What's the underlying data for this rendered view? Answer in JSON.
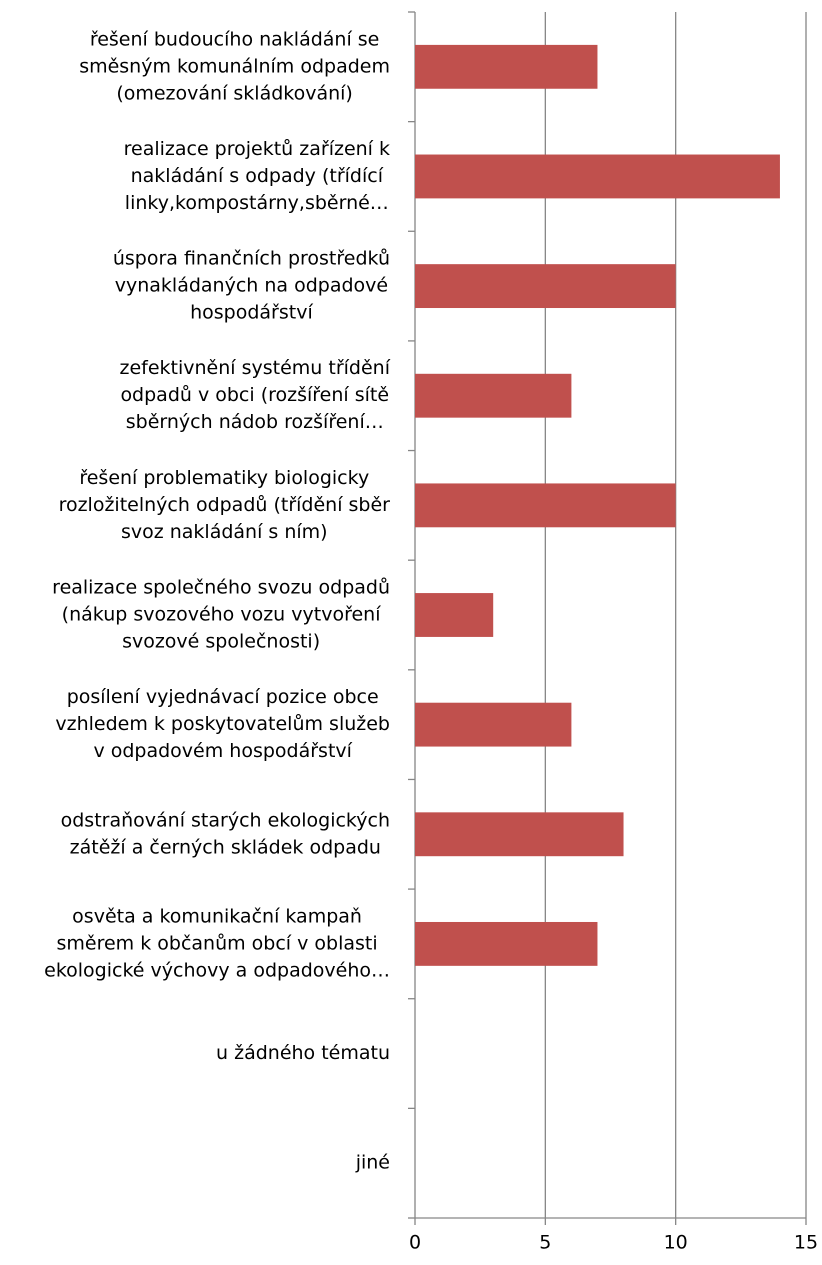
{
  "chart_data": {
    "type": "bar",
    "orientation": "horizontal",
    "categories": [
      [
        "řešení budoucího nakládání se",
        "směsným komunálním odpadem",
        "(omezování skládkování)"
      ],
      [
        "realizace projektů zařízení k",
        "nakládání s odpady (třídící",
        "linky,kompostárny,sběrné…"
      ],
      [
        "úspora finančních prostředků",
        "vynakládaných na odpadové",
        "hospodářství"
      ],
      [
        "zefektivnění systému třídění",
        "odpadů v obci (rozšíření sítě",
        "sběrných nádob rozšíření…"
      ],
      [
        "řešení problematiky biologicky",
        "rozložitelných odpadů (třídění sběr",
        "svoz nakládání s ním)"
      ],
      [
        "realizace společného svozu odpadů",
        "(nákup svozového vozu vytvoření",
        "svozové společnosti)"
      ],
      [
        "posílení vyjednávací pozice obce",
        "vzhledem k poskytovatelům služeb",
        "v odpadovém hospodářství"
      ],
      [
        "odstraňování starých ekologických",
        "zátěží a černých skládek odpadu"
      ],
      [
        "osvěta a komunikační kampaň",
        "směrem k občanům obcí v oblasti",
        "ekologické výchovy a odpadového…"
      ],
      [
        "u žádného tématu"
      ],
      [
        "jiné"
      ]
    ],
    "values": [
      7,
      14,
      10,
      6,
      10,
      3,
      6,
      8,
      7,
      0,
      0
    ],
    "color": "#c0504d",
    "xlim": [
      0,
      15
    ],
    "xticks": [
      0,
      5,
      10,
      15
    ],
    "grid": true
  }
}
